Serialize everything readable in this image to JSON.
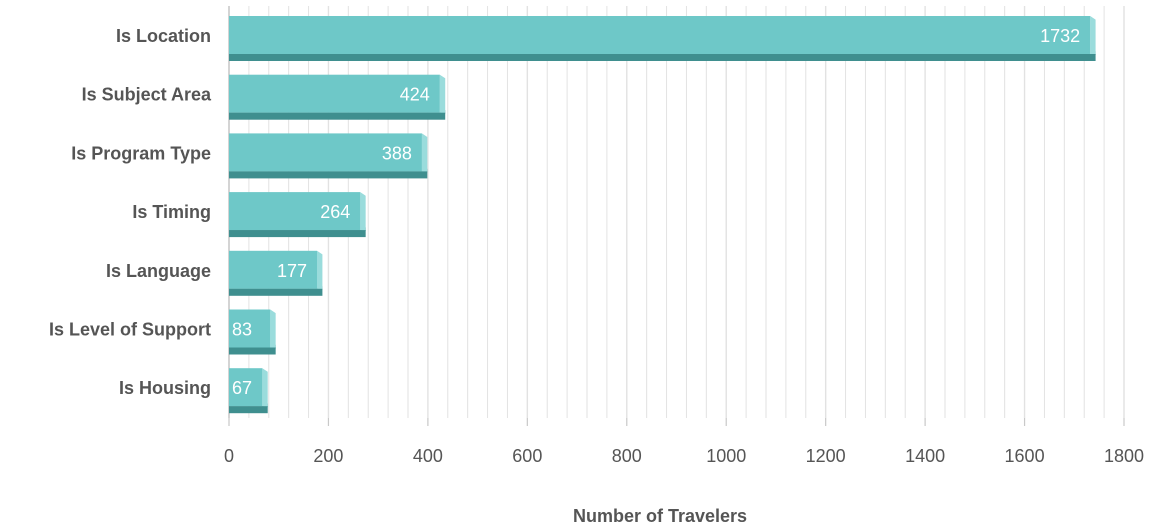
{
  "chart_data": {
    "type": "bar",
    "orientation": "horizontal",
    "categories": [
      "Is Location",
      "Is Subject Area",
      "Is Program Type",
      "Is Timing",
      "Is Language",
      "Is Level of Support",
      "Is Housing"
    ],
    "values": [
      1732,
      424,
      388,
      264,
      177,
      83,
      67
    ],
    "xlabel": "Number of Travelers",
    "ylabel": "",
    "xlim": [
      0,
      1800
    ],
    "xticks": [
      0,
      200,
      400,
      600,
      800,
      1000,
      1200,
      1400,
      1600,
      1800
    ],
    "data_labels": true,
    "grid": true,
    "colors": {
      "bar_face": "#6ec8c8",
      "bar_shadow": "#3f8f8f",
      "bar_edge": "#9adcdc",
      "grid": "#e2e2e2",
      "axis": "#c9c9c9"
    }
  }
}
